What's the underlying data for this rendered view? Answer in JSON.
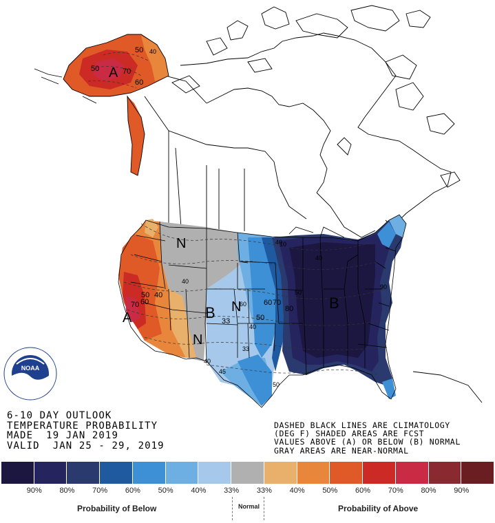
{
  "map": {
    "category_labels": {
      "above_alaska": "A",
      "above_california": "A",
      "below_central": "B",
      "below_east": "B",
      "normal_north": "N",
      "normal_central": "N",
      "normal_southwest": "N"
    },
    "contour_labels": [
      "50",
      "40",
      "70",
      "50",
      "60",
      "50",
      "40",
      "70",
      "60",
      "40",
      "33",
      "40",
      "50",
      "60",
      "70",
      "80",
      "60",
      "40",
      "33",
      "45",
      "50",
      "40",
      "40",
      "60",
      "70",
      "80",
      "90",
      "10",
      "50",
      "90"
    ],
    "regions": [
      {
        "id": "alaska",
        "category": "above",
        "probability": "70%"
      },
      {
        "id": "pacific-coast-west",
        "category": "above",
        "probability": "70%"
      },
      {
        "id": "intermountain-west",
        "category": "near-normal",
        "probability": "33%"
      },
      {
        "id": "central-plains",
        "category": "below",
        "probability": "40%"
      },
      {
        "id": "eastern-us",
        "category": "below",
        "probability": "90%"
      }
    ],
    "logo_text": "NOAA"
  },
  "title": {
    "line1": "6-10 DAY OUTLOOK",
    "line2": "TEMPERATURE PROBABILITY",
    "line3": "MADE  19 JAN 2019",
    "line4": "VALID  JAN 25 - 29, 2019"
  },
  "note": {
    "line1": "DASHED BLACK LINES ARE CLIMATOLOGY",
    "line2": "(DEG F) SHADED AREAS ARE FCST",
    "line3": "VALUES ABOVE (A) OR BELOW (B) NORMAL",
    "line4": "GRAY AREAS ARE NEAR-NORMAL"
  },
  "legend": {
    "colors": [
      "#1c1740",
      "#25245e",
      "#2a3a6e",
      "#1f5aa0",
      "#3d8fd6",
      "#6eafe3",
      "#a6c8ea",
      "#b0b0b0",
      "#e8b06a",
      "#e8863c",
      "#e05a28",
      "#cc2a24",
      "#c92b45",
      "#8a2a30",
      "#6a1e22"
    ],
    "ticks": [
      "90%",
      "80%",
      "70%",
      "60%",
      "50%",
      "40%",
      "33%",
      "33%",
      "40%",
      "50%",
      "60%",
      "70%",
      "80%",
      "90%"
    ],
    "below_label": "Probability of Below",
    "normal_label": "Normal",
    "above_label": "Probability of Above"
  }
}
